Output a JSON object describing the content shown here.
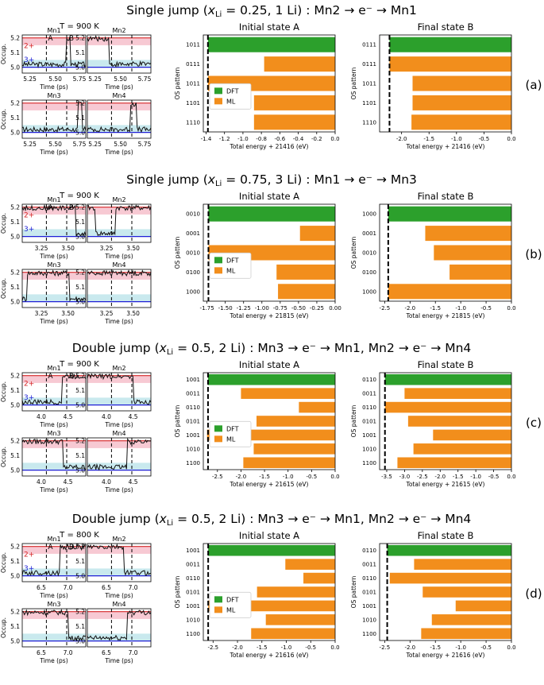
{
  "legend": {
    "dft": "DFT",
    "ml": "ML"
  },
  "colors": {
    "dft": "#2ca02c",
    "ml": "#f28e1c",
    "red_line": "#d62728",
    "blue_line": "#1f1fd6",
    "red_band": "#f7c9d3",
    "blue_band": "#c9e9ee",
    "trace": "#111111"
  },
  "labels": {
    "occ": "Occup.",
    "time": "Time (ps)",
    "os": "OS pattern",
    "initial": "Initial state A",
    "final": "Final state B",
    "ox2": "2+",
    "ox3": "3+",
    "markA": "A",
    "markB": "B"
  },
  "occ_yticks": [
    "5.2",
    "5.1",
    "5.0"
  ],
  "panels": [
    {
      "title": "Single jump (xLi = 0.25, 1 Li) : Mn2 → e⁻ → Mn1",
      "title_pre": "Single jump (",
      "title_x": "x",
      "title_sub": "Li",
      "title_post": " = 0.25, 1 Li) : Mn2 → e⁻ → Mn1",
      "temp": "T = 900 K",
      "tag": "(a)",
      "mn_names": [
        "Mn1",
        "Mn2",
        "Mn3",
        "Mn4"
      ],
      "xticks": [
        "5.25",
        "5.50",
        "5.75"
      ],
      "xlabel": "Total energy + 21416 (eV)",
      "chart_data": {
        "type": "bar",
        "x_ticks": [
          "-1.4",
          "-1.2",
          "-1.0",
          "-0.8",
          "-0.6",
          "-0.4",
          "-0.2",
          "0.0"
        ],
        "initial": {
          "xlim": [
            -1.43,
            0.0
          ],
          "tick_values": [
            -1.4,
            -1.2,
            -1.0,
            -0.8,
            -0.6,
            -0.4,
            -0.2,
            0.0
          ],
          "dashed": -1.38,
          "categories": [
            "1011",
            "0111",
            "1011",
            "1101",
            "1110"
          ],
          "series": [
            {
              "name": "DFT",
              "values": [
                -1.38,
                null,
                null,
                null,
                null
              ]
            },
            {
              "name": "ML",
              "values": [
                null,
                -0.77,
                -1.38,
                -0.88,
                -0.88
              ]
            }
          ]
        },
        "final": {
          "xlim": [
            -2.4,
            0.0
          ],
          "tick_values": [
            -2.0,
            -1.5,
            -1.0,
            -0.5,
            0.0
          ],
          "dashed": -2.22,
          "x_ticks": [
            "-2.0",
            "-1.5",
            "-1.0",
            "-0.5",
            "0.0"
          ],
          "categories": [
            "0111",
            "0111",
            "1011",
            "1101",
            "1110"
          ],
          "series": [
            {
              "name": "DFT",
              "values": [
                -2.22,
                null,
                null,
                null,
                null
              ]
            },
            {
              "name": "ML",
              "values": [
                null,
                -2.22,
                -1.8,
                -1.8,
                -1.82
              ]
            }
          ]
        }
      }
    },
    {
      "title": "Single jump (xLi = 0.75, 3 Li) : Mn1 → e⁻ → Mn3",
      "title_pre": "Single jump (",
      "title_x": "x",
      "title_sub": "Li",
      "title_post": " = 0.75, 3 Li) : Mn1 → e⁻ → Mn3",
      "temp": "T = 900 K",
      "tag": "(b)",
      "mn_names": [
        "Mn1",
        "Mn2",
        "Mn3",
        "Mn4"
      ],
      "xticks": [
        "3.25",
        "3.50"
      ],
      "xlabel": "Total energy + 21815 (eV)",
      "chart_data": {
        "type": "bar",
        "initial": {
          "xlim": [
            -1.8,
            0.0
          ],
          "tick_values": [
            -1.75,
            -1.5,
            -1.25,
            -1.0,
            -0.75,
            -0.5,
            -0.25,
            0.0
          ],
          "dashed": -1.73,
          "x_ticks": [
            "-1.75",
            "-1.50",
            "-1.25",
            "-1.00",
            "-0.75",
            "-0.50",
            "-0.25",
            "0.00"
          ],
          "categories": [
            "0010",
            "0001",
            "0010",
            "0100",
            "1000"
          ],
          "series": [
            {
              "name": "DFT",
              "values": [
                -1.73,
                null,
                null,
                null,
                null
              ]
            },
            {
              "name": "ML",
              "values": [
                null,
                -0.48,
                -1.73,
                -0.8,
                -0.78
              ]
            }
          ]
        },
        "final": {
          "xlim": [
            -2.6,
            0.0
          ],
          "tick_values": [
            -2.5,
            -2.0,
            -1.5,
            -1.0,
            -0.5,
            0.0
          ],
          "dashed": -2.43,
          "x_ticks": [
            "-2.5",
            "-2.0",
            "-1.5",
            "-1.0",
            "-0.5",
            "0.0"
          ],
          "categories": [
            "1000",
            "0001",
            "0010",
            "0100",
            "1000"
          ],
          "series": [
            {
              "name": "DFT",
              "values": [
                -2.43,
                null,
                null,
                null,
                null
              ]
            },
            {
              "name": "ML",
              "values": [
                null,
                -1.7,
                -1.53,
                -1.22,
                -2.43
              ]
            }
          ]
        }
      }
    },
    {
      "title": "Double jump (xLi = 0.5, 2 Li) : Mn3 → e⁻ → Mn1, Mn2 → e⁻ → Mn4",
      "title_pre": "Double jump (",
      "title_x": "x",
      "title_sub": "Li",
      "title_post": " = 0.5, 2 Li) : Mn3 → e⁻ → Mn1, Mn2 → e⁻ → Mn4",
      "temp": "T = 900 K",
      "tag": "(c)",
      "mn_names": [
        "Mn1",
        "Mn2",
        "Mn3",
        "Mn4"
      ],
      "xticks": [
        "4.0",
        "4.5"
      ],
      "xlabel": "Total energy + 21615 (eV)",
      "chart_data": {
        "type": "bar",
        "initial": {
          "xlim": [
            -2.8,
            0.0
          ],
          "tick_values": [
            -2.5,
            -2.0,
            -1.5,
            -1.0,
            -0.5,
            0.0
          ],
          "dashed": -2.7,
          "x_ticks": [
            "-2.5",
            "-2.0",
            "-1.5",
            "-1.0",
            "-0.5",
            "0.0"
          ],
          "categories": [
            "1001",
            "0011",
            "0110",
            "0101",
            "1001",
            "1010",
            "1100"
          ],
          "series": [
            {
              "name": "DFT",
              "values": [
                -2.7,
                null,
                null,
                null,
                null,
                null,
                null
              ]
            },
            {
              "name": "ML",
              "values": [
                null,
                -2.0,
                -0.77,
                -1.67,
                -2.72,
                -1.73,
                -1.95
              ]
            }
          ]
        },
        "final": {
          "xlim": [
            -3.7,
            0.0
          ],
          "tick_values": [
            -3.5,
            -3.0,
            -2.5,
            -2.0,
            -1.5,
            -1.0,
            -0.5,
            0.0
          ],
          "dashed": -3.55,
          "x_ticks": [
            "-3.5",
            "-3.0",
            "-2.5",
            "-2.0",
            "-1.5",
            "-1.0",
            "-0.5",
            "0.0"
          ],
          "categories": [
            "0110",
            "0011",
            "0110",
            "0101",
            "1001",
            "1010",
            "1100"
          ],
          "series": [
            {
              "name": "DFT",
              "values": [
                -3.55,
                null,
                null,
                null,
                null,
                null,
                null
              ]
            },
            {
              "name": "ML",
              "values": [
                null,
                -3.0,
                -3.55,
                -2.9,
                -2.2,
                -2.75,
                -3.2
              ]
            }
          ]
        }
      }
    },
    {
      "title": "Double jump (xLi = 0.5, 2 Li) : Mn3 → e⁻ → Mn1, Mn2 → e⁻ → Mn4",
      "title_pre": "Double jump (",
      "title_x": "x",
      "title_sub": "Li",
      "title_post": " = 0.5, 2 Li) : Mn3 → e⁻ → Mn1, Mn2 → e⁻ → Mn4",
      "temp": "T = 800 K",
      "tag": "(d)",
      "mn_names": [
        "Mn1",
        "Mn2",
        "Mn3",
        "Mn4"
      ],
      "xticks": [
        "6.5",
        "7.0"
      ],
      "xlabel": "Total energy + 21616 (eV)",
      "chart_data": {
        "type": "bar",
        "initial": {
          "xlim": [
            -2.7,
            0.0
          ],
          "tick_values": [
            -2.5,
            -2.0,
            -1.5,
            -1.0,
            -0.5,
            0.0
          ],
          "dashed": -2.6,
          "x_ticks": [
            "-2.5",
            "-2.0",
            "-1.5",
            "-1.0",
            "-0.5",
            "0.0"
          ],
          "categories": [
            "1001",
            "0011",
            "0110",
            "0101",
            "1001",
            "1010",
            "1100"
          ],
          "series": [
            {
              "name": "DFT",
              "values": [
                -2.6,
                null,
                null,
                null,
                null,
                null,
                null
              ]
            },
            {
              "name": "ML",
              "values": [
                null,
                -1.02,
                -0.65,
                -1.6,
                -2.6,
                -1.42,
                -1.72
              ]
            }
          ]
        },
        "final": {
          "xlim": [
            -2.6,
            0.0
          ],
          "tick_values": [
            -2.5,
            -2.0,
            -1.5,
            -1.0,
            -0.5,
            0.0
          ],
          "dashed": -2.45,
          "x_ticks": [
            "-2.5",
            "-2.0",
            "-1.5",
            "-1.0",
            "-0.5",
            "0.0"
          ],
          "categories": [
            "0110",
            "0011",
            "0110",
            "0101",
            "1001",
            "1010",
            "1100"
          ],
          "series": [
            {
              "name": "DFT",
              "values": [
                -2.45,
                null,
                null,
                null,
                null,
                null,
                null
              ]
            },
            {
              "name": "ML",
              "values": [
                null,
                -1.92,
                -2.4,
                -1.75,
                -1.1,
                -1.57,
                -1.78
              ]
            }
          ]
        }
      }
    }
  ]
}
